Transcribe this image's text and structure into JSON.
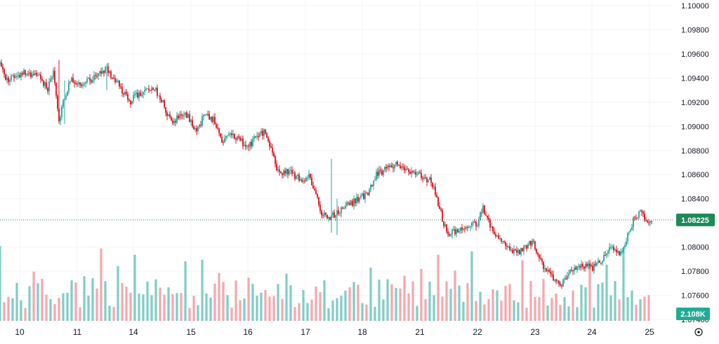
{
  "colors": {
    "up": "#26a69a",
    "down": "#e0101a",
    "volume_up": "#7fcdc4",
    "volume_down": "#f5a7ad",
    "grid": "#f0f3fa",
    "price_badge": "#1e8a57",
    "volume_badge": "#22ab94",
    "last_price_line": "#1e8a57"
  },
  "chart_data": {
    "type": "candlestick",
    "title": "",
    "xlabel": "",
    "ylabel": "",
    "ylim": [
      1.074,
      1.1
    ],
    "grid": true,
    "x_tick_labels": [
      "10",
      "11",
      "14",
      "15",
      "16",
      "17",
      "18",
      "21",
      "22",
      "23",
      "24",
      "25"
    ],
    "y_tick_labels": [
      "1.10000",
      "1.09800",
      "1.09600",
      "1.09400",
      "1.09200",
      "1.09000",
      "1.08800",
      "1.08600",
      "1.08400",
      "1.08000",
      "1.07800",
      "1.07600",
      "1.07400"
    ],
    "last_price": "1.08225",
    "last_volume": "2.108K",
    "settings_icon": "gear-icon",
    "anchors": [
      [
        0,
        1.0952
      ],
      [
        4,
        1.0938
      ],
      [
        12,
        1.0942
      ],
      [
        20,
        1.0945
      ],
      [
        28,
        1.094
      ],
      [
        34,
        1.0932
      ],
      [
        38,
        1.0945
      ],
      [
        42,
        1.0905
      ],
      [
        46,
        1.0925
      ],
      [
        50,
        1.0938
      ],
      [
        60,
        1.0935
      ],
      [
        68,
        1.0942
      ],
      [
        76,
        1.0948
      ],
      [
        80,
        1.094
      ],
      [
        84,
        1.0936
      ],
      [
        92,
        1.092
      ],
      [
        100,
        1.0928
      ],
      [
        110,
        1.0932
      ],
      [
        116,
        1.092
      ],
      [
        122,
        1.0902
      ],
      [
        128,
        1.091
      ],
      [
        134,
        1.0908
      ],
      [
        140,
        1.0895
      ],
      [
        146,
        1.0912
      ],
      [
        152,
        1.0905
      ],
      [
        158,
        1.0888
      ],
      [
        164,
        1.0892
      ],
      [
        170,
        1.089
      ],
      [
        176,
        1.0882
      ],
      [
        182,
        1.089
      ],
      [
        188,
        1.0895
      ],
      [
        192,
        1.0885
      ],
      [
        198,
        1.0862
      ],
      [
        206,
        1.0862
      ],
      [
        212,
        1.0858
      ],
      [
        216,
        1.0855
      ],
      [
        220,
        1.086
      ],
      [
        224,
        1.0848
      ],
      [
        228,
        1.083
      ],
      [
        234,
        1.0825
      ],
      [
        240,
        1.0828
      ],
      [
        248,
        1.0835
      ],
      [
        256,
        1.084
      ],
      [
        262,
        1.0845
      ],
      [
        268,
        1.086
      ],
      [
        276,
        1.0865
      ],
      [
        282,
        1.0868
      ],
      [
        288,
        1.0866
      ],
      [
        294,
        1.0862
      ],
      [
        300,
        1.0858
      ],
      [
        306,
        1.0855
      ],
      [
        310,
        1.0845
      ],
      [
        314,
        1.0828
      ],
      [
        318,
        1.0812
      ],
      [
        324,
        1.0812
      ],
      [
        330,
        1.0815
      ],
      [
        336,
        1.0818
      ],
      [
        340,
        1.082
      ],
      [
        344,
        1.0833
      ],
      [
        348,
        1.082
      ],
      [
        352,
        1.0812
      ],
      [
        356,
        1.0805
      ],
      [
        362,
        1.0798
      ],
      [
        368,
        1.0795
      ],
      [
        374,
        1.08
      ],
      [
        380,
        1.0805
      ],
      [
        384,
        1.079
      ],
      [
        388,
        1.0782
      ],
      [
        392,
        1.0775
      ],
      [
        396,
        1.0772
      ],
      [
        400,
        1.0768
      ],
      [
        404,
        1.0778
      ],
      [
        410,
        1.0782
      ],
      [
        416,
        1.0785
      ],
      [
        422,
        1.0782
      ],
      [
        428,
        1.0788
      ],
      [
        432,
        1.0795
      ],
      [
        436,
        1.08
      ],
      [
        440,
        1.0795
      ],
      [
        444,
        1.08
      ],
      [
        448,
        1.0812
      ],
      [
        452,
        1.0825
      ],
      [
        456,
        1.0828
      ],
      [
        460,
        1.0823
      ],
      [
        464,
        1.0822
      ]
    ],
    "candle_count": 465,
    "events": [
      {
        "i": 42,
        "wick_hi": 1.0955,
        "wick_lo": 1.0902
      },
      {
        "i": 46,
        "wick_hi": 1.0938,
        "wick_lo": 1.0902
      },
      {
        "i": 76,
        "wick_hi": 1.0952,
        "wick_lo": 1.093
      },
      {
        "i": 236,
        "wick_hi": 1.0873,
        "wick_lo": 1.0812
      },
      {
        "i": 240,
        "wick_hi": 1.084,
        "wick_lo": 1.081
      }
    ]
  }
}
